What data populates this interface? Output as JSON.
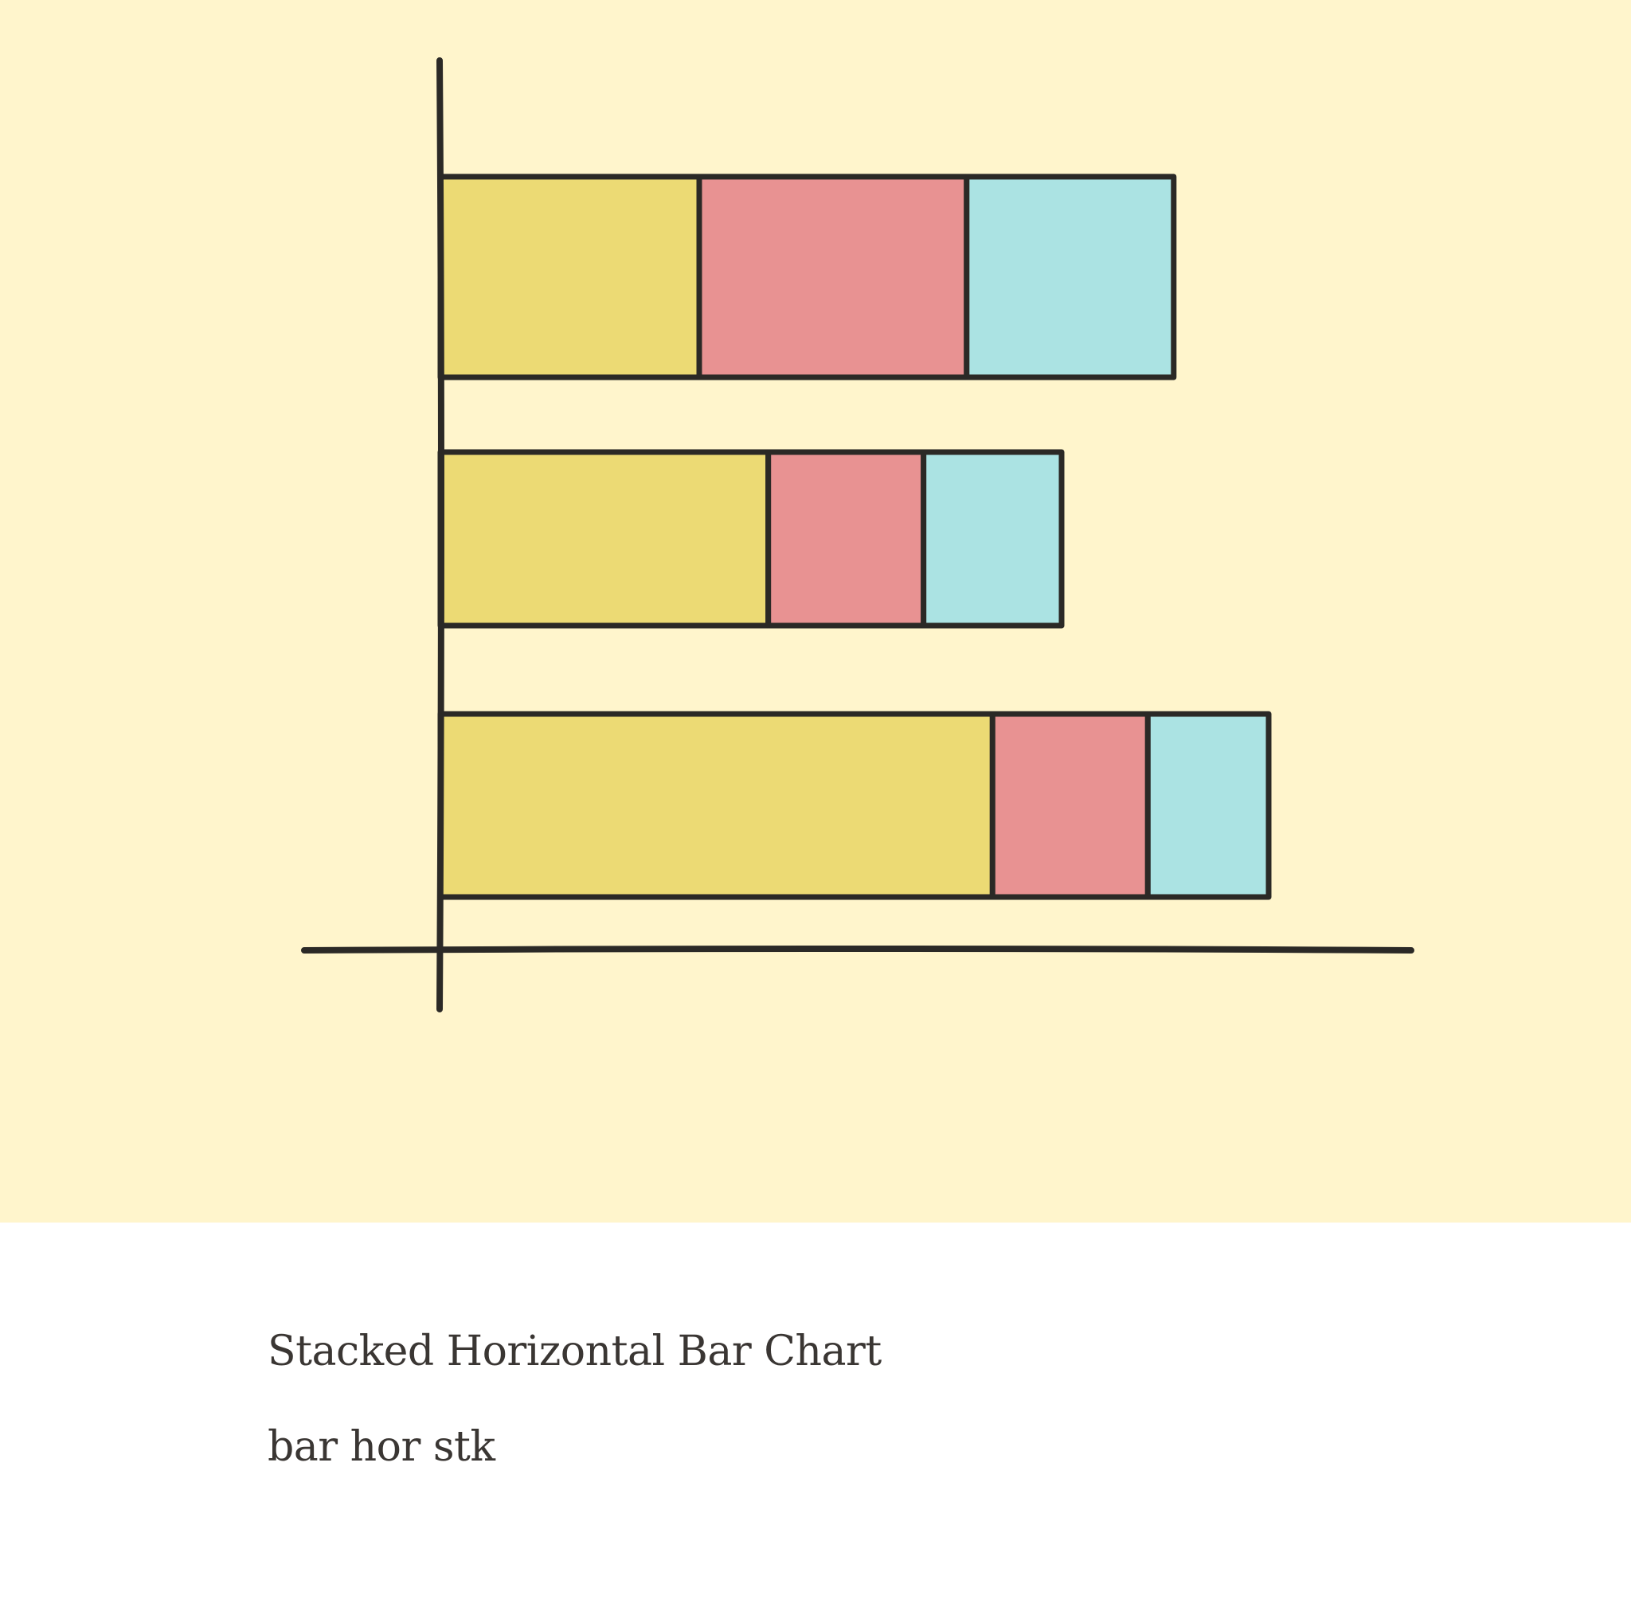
{
  "card": {
    "title": "Stacked Horizontal Bar Chart",
    "tags": "bar hor stk"
  },
  "illustration": {
    "icon": "stacked-horizontal-bar-chart-icon",
    "background_color": "#fff5cc",
    "outline_color": "#2b2926",
    "segment_colors": [
      "#ecda74",
      "#e89292",
      "#abe3e3"
    ],
    "bars": [
      {
        "segments": [
          3,
          3.1,
          2.4
        ]
      },
      {
        "segments": [
          3.8,
          1.8,
          1.6
        ]
      },
      {
        "segments": [
          6.4,
          1.8,
          1.4
        ]
      }
    ],
    "xmax": 12
  }
}
